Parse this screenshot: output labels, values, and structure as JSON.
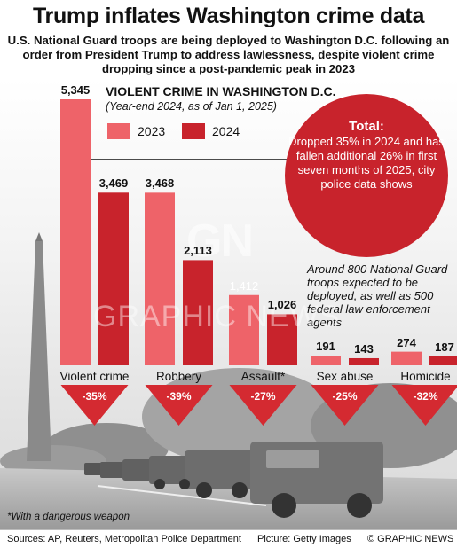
{
  "header": {
    "title": "Trump inflates Washington crime data",
    "subtitle": "U.S. National Guard troops are being deployed to Washington D.C. following an order from President Trump to address lawlessness, despite violent crime dropping since a post-pandemic peak in 2023"
  },
  "chart_data": {
    "type": "bar",
    "title": "VIOLENT CRIME IN WASHINGTON D.C.",
    "subtitle": "(Year-end 2024, as of Jan 1, 2025)",
    "categories": [
      "Violent crime",
      "Robbery",
      "Assault*",
      "Sex abuse",
      "Homicide"
    ],
    "series": [
      {
        "name": "2023",
        "values": [
          5345,
          3468,
          1412,
          191,
          274
        ]
      },
      {
        "name": "2024",
        "values": [
          3469,
          2113,
          1026,
          143,
          187
        ]
      }
    ],
    "value_labels_2023": [
      "5,345",
      "3,468",
      "1,412",
      "191",
      "274"
    ],
    "value_labels_2024": [
      "3,469",
      "2,113",
      "1,026",
      "143",
      "187"
    ],
    "changes": [
      "-35%",
      "-39%",
      "-27%",
      "-25%",
      "-32%"
    ],
    "legend_position": "top",
    "grid": false
  },
  "colors": {
    "series_2023": "#ee6369",
    "series_2024": "#c8232c",
    "circle": "#c8232c",
    "triangle": "#d42a31"
  },
  "callout": {
    "heading": "Total:",
    "body": "Dropped 35% in 2024 and has fallen additional 26% in first seven months of 2025, city police data shows"
  },
  "note": "Around 800 National Guard troops expected to be deployed, as well as 500 federal law enforcement agents",
  "footnote": "*With a dangerous weapon",
  "footer": {
    "sources": "Sources: AP, Reuters, Metropolitan Police Department",
    "picture": "Picture: Getty Images",
    "copyright": "© GRAPHIC NEWS"
  },
  "watermark": {
    "logo": "GN",
    "text": "GRAPHIC NEWS"
  }
}
